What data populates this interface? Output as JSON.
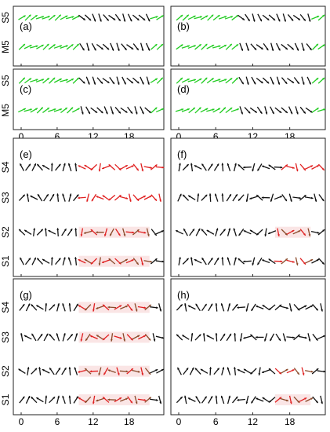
{
  "chart_data": [
    {
      "type": "vector",
      "panel_label": "(a)",
      "rows": [
        "S5",
        "M5"
      ],
      "x_ticks": [
        "0",
        "6",
        "12",
        "18"
      ],
      "xlim": [
        0,
        23
      ]
    },
    {
      "type": "vector",
      "panel_label": "(b)",
      "rows": [
        "S5",
        "M5"
      ],
      "x_ticks": [
        "0",
        "6",
        "12",
        "18"
      ],
      "xlim": [
        0,
        23
      ]
    },
    {
      "type": "vector",
      "panel_label": "(c)",
      "rows": [
        "S5",
        "M5"
      ],
      "x_ticks": [
        "0",
        "6",
        "12",
        "18"
      ],
      "xlim": [
        0,
        23
      ]
    },
    {
      "type": "vector",
      "panel_label": "(d)",
      "rows": [
        "S5",
        "M5"
      ],
      "x_ticks": [
        "0",
        "6",
        "12",
        "18"
      ],
      "xlim": [
        0,
        23
      ]
    },
    {
      "type": "vector",
      "panel_label": "(e)",
      "rows": [
        "S4",
        "S3",
        "S2",
        "S1"
      ],
      "x_ticks": [
        "0",
        "6",
        "12",
        "18"
      ],
      "xlim": [
        0,
        23
      ],
      "highlight_hours": [
        10,
        21
      ]
    },
    {
      "type": "vector",
      "panel_label": "(f)",
      "rows": [
        "S4",
        "S3",
        "S2",
        "S1"
      ],
      "x_ticks": [
        "0",
        "6",
        "12",
        "18"
      ],
      "xlim": [
        0,
        23
      ],
      "highlight_hours": [
        16,
        21
      ]
    },
    {
      "type": "vector",
      "panel_label": "(g)",
      "rows": [
        "S4",
        "S3",
        "S2",
        "S1"
      ],
      "x_ticks": [
        "0",
        "6",
        "12",
        "18"
      ],
      "xlim": [
        0,
        23
      ],
      "highlight_hours": [
        10,
        21
      ]
    },
    {
      "type": "vector",
      "panel_label": "(h)",
      "rows": [
        "S4",
        "S3",
        "S2",
        "S1"
      ],
      "x_ticks": [
        "0",
        "6",
        "12",
        "18"
      ],
      "xlim": [
        0,
        23
      ],
      "highlight_hours": [
        16,
        21
      ]
    }
  ],
  "colors": {
    "green": "#22cc22",
    "black": "#111111",
    "red": "#e02020",
    "highlight": "#f6d0d0"
  }
}
